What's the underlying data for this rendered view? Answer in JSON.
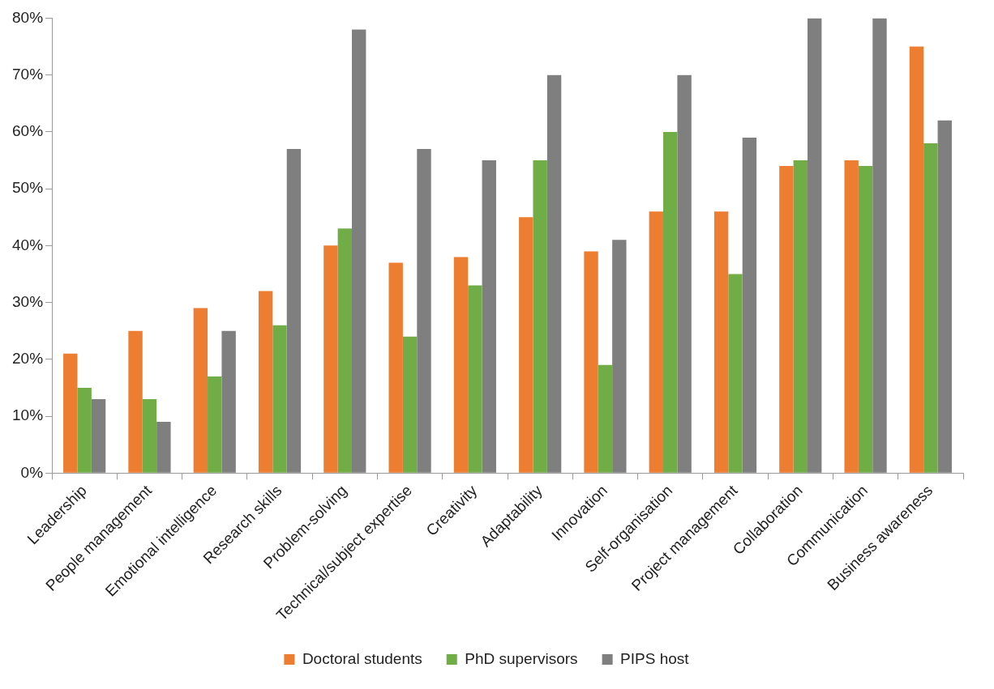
{
  "chart_data": {
    "type": "bar",
    "categories": [
      "Leadership",
      "People management",
      "Emotional intelligence",
      "Research skills",
      "Problem-solving",
      "Technical/subject expertise",
      "Creativity",
      "Adaptability",
      "Innovation",
      "Self-organisation",
      "Project management",
      "Collaboration",
      "Communication",
      "Business awareness"
    ],
    "series": [
      {
        "name": "Doctoral students",
        "color": "#ed7d31",
        "values": [
          21,
          25,
          29,
          32,
          40,
          37,
          38,
          45,
          39,
          46,
          46,
          54,
          55,
          75
        ]
      },
      {
        "name": "PhD supervisors",
        "color": "#70ad47",
        "values": [
          15,
          13,
          17,
          26,
          43,
          24,
          33,
          55,
          19,
          60,
          35,
          55,
          54,
          58
        ]
      },
      {
        "name": "PIPS host",
        "color": "#7f7f7f",
        "values": [
          13,
          9,
          25,
          57,
          78,
          57,
          55,
          70,
          41,
          70,
          59,
          80,
          80,
          62
        ]
      }
    ],
    "ylim": [
      0,
      80
    ],
    "yticks": [
      {
        "value": 0,
        "label": "0%"
      },
      {
        "value": 10,
        "label": "10%"
      },
      {
        "value": 20,
        "label": "20%"
      },
      {
        "value": 30,
        "label": "30%"
      },
      {
        "value": 40,
        "label": "40%"
      },
      {
        "value": 50,
        "label": "50%"
      },
      {
        "value": 60,
        "label": "60%"
      },
      {
        "value": 70,
        "label": "70%"
      },
      {
        "value": 80,
        "label": "80%"
      }
    ],
    "grid": false,
    "legend": "bottom"
  }
}
